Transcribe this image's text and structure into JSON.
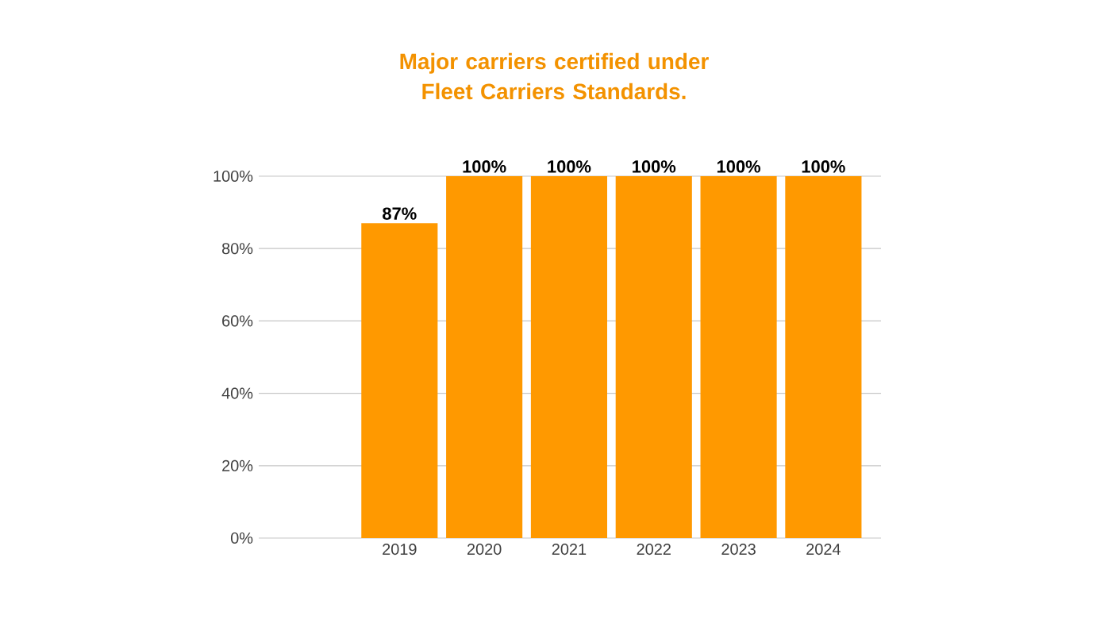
{
  "chart_data": {
    "type": "bar",
    "title": "Major carriers certified under Fleet Carriers Standards.",
    "categories": [
      "2019",
      "2020",
      "2021",
      "2022",
      "2023",
      "2024"
    ],
    "values": [
      87,
      100,
      100,
      100,
      100,
      100
    ],
    "value_labels": [
      "87%",
      "100%",
      "100%",
      "100%",
      "100%",
      "100%"
    ],
    "color": "#ff9900",
    "ylim": [
      0,
      100
    ],
    "yticks": [
      {
        "value": 0,
        "label": "0%"
      },
      {
        "value": 20,
        "label": "20%"
      },
      {
        "value": 40,
        "label": "40%"
      },
      {
        "value": 60,
        "label": "60%"
      },
      {
        "value": 80,
        "label": "80%"
      },
      {
        "value": 100,
        "label": "100%"
      }
    ],
    "grid": "y"
  }
}
